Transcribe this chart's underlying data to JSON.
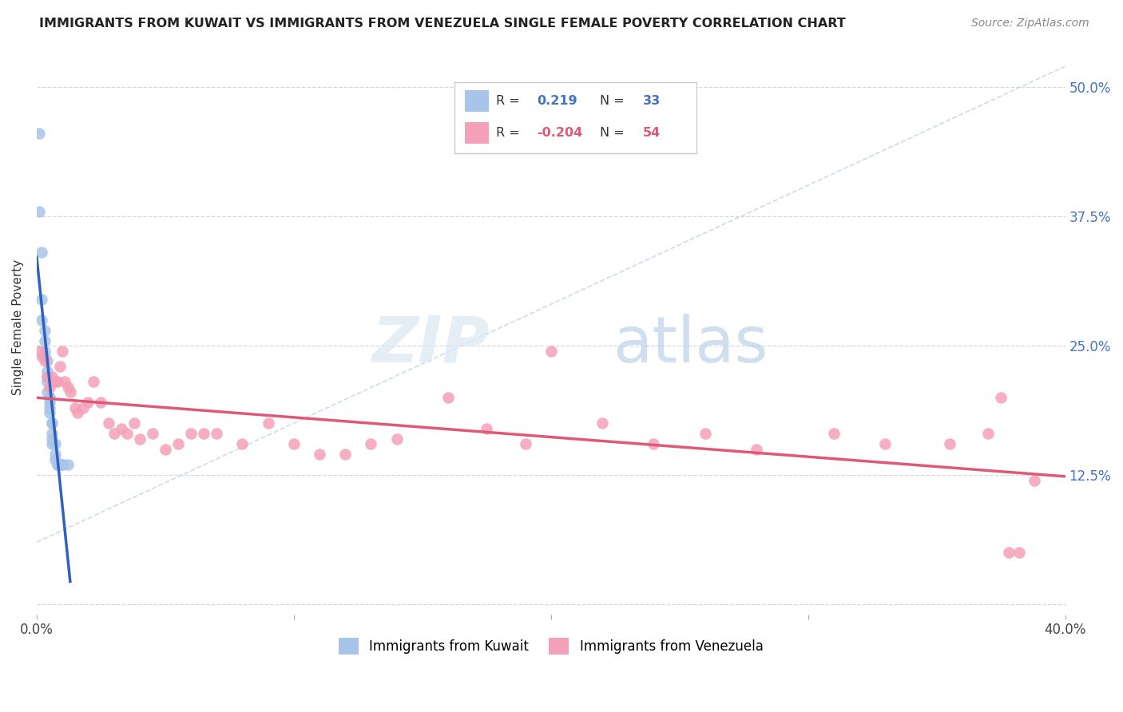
{
  "title": "IMMIGRANTS FROM KUWAIT VS IMMIGRANTS FROM VENEZUELA SINGLE FEMALE POVERTY CORRELATION CHART",
  "source": "Source: ZipAtlas.com",
  "ylabel": "Single Female Poverty",
  "yticks": [
    0.0,
    0.125,
    0.25,
    0.375,
    0.5
  ],
  "ytick_labels": [
    "",
    "12.5%",
    "25.0%",
    "37.5%",
    "50.0%"
  ],
  "xlim": [
    0.0,
    0.4
  ],
  "ylim": [
    -0.01,
    0.545
  ],
  "kuwait_R": 0.219,
  "kuwait_N": 33,
  "venezuela_R": -0.204,
  "venezuela_N": 54,
  "kuwait_color": "#a8c4e8",
  "venezuela_color": "#f4a0b8",
  "kuwait_line_color": "#3060c0",
  "venezuela_line_color": "#e05878",
  "dashed_line_color": "#c0d4e8",
  "background_color": "#ffffff",
  "kuwait_x": [
    0.001,
    0.001,
    0.002,
    0.002,
    0.002,
    0.003,
    0.003,
    0.003,
    0.003,
    0.004,
    0.004,
    0.004,
    0.004,
    0.004,
    0.005,
    0.005,
    0.005,
    0.005,
    0.005,
    0.006,
    0.006,
    0.006,
    0.006,
    0.006,
    0.007,
    0.007,
    0.007,
    0.008,
    0.008,
    0.009,
    0.01,
    0.01,
    0.012
  ],
  "kuwait_y": [
    0.455,
    0.38,
    0.34,
    0.295,
    0.275,
    0.265,
    0.255,
    0.245,
    0.24,
    0.235,
    0.225,
    0.22,
    0.215,
    0.205,
    0.2,
    0.2,
    0.195,
    0.19,
    0.185,
    0.175,
    0.175,
    0.165,
    0.16,
    0.155,
    0.155,
    0.145,
    0.14,
    0.135,
    0.135,
    0.135,
    0.135,
    0.135,
    0.135
  ],
  "venezuela_x": [
    0.001,
    0.002,
    0.003,
    0.004,
    0.005,
    0.006,
    0.007,
    0.008,
    0.009,
    0.01,
    0.011,
    0.012,
    0.013,
    0.015,
    0.016,
    0.018,
    0.02,
    0.022,
    0.025,
    0.028,
    0.03,
    0.033,
    0.035,
    0.038,
    0.04,
    0.045,
    0.05,
    0.055,
    0.06,
    0.065,
    0.07,
    0.08,
    0.09,
    0.1,
    0.11,
    0.12,
    0.13,
    0.14,
    0.16,
    0.175,
    0.19,
    0.2,
    0.22,
    0.24,
    0.26,
    0.28,
    0.31,
    0.33,
    0.355,
    0.37,
    0.375,
    0.378,
    0.382,
    0.388
  ],
  "venezuela_y": [
    0.245,
    0.24,
    0.235,
    0.22,
    0.21,
    0.22,
    0.215,
    0.215,
    0.23,
    0.245,
    0.215,
    0.21,
    0.205,
    0.19,
    0.185,
    0.19,
    0.195,
    0.215,
    0.195,
    0.175,
    0.165,
    0.17,
    0.165,
    0.175,
    0.16,
    0.165,
    0.15,
    0.155,
    0.165,
    0.165,
    0.165,
    0.155,
    0.175,
    0.155,
    0.145,
    0.145,
    0.155,
    0.16,
    0.2,
    0.17,
    0.155,
    0.245,
    0.175,
    0.155,
    0.165,
    0.15,
    0.165,
    0.155,
    0.155,
    0.165,
    0.2,
    0.05,
    0.05,
    0.12
  ]
}
